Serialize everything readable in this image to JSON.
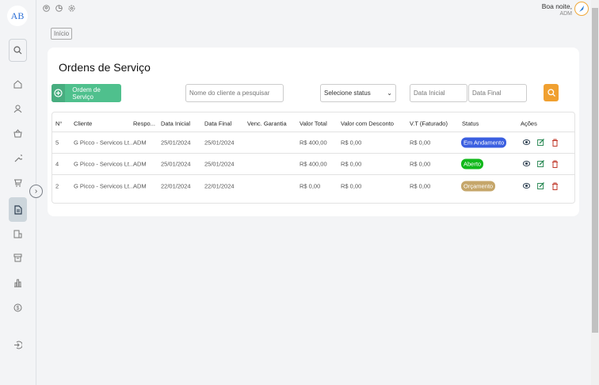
{
  "sidebar": {
    "logo": "AB",
    "items": [
      "search",
      "home",
      "user",
      "basket",
      "wrench",
      "cart",
      "documents",
      "invoice",
      "archive",
      "chart",
      "dollar",
      "logout"
    ],
    "active": "documents"
  },
  "header": {
    "greeting": "Boa noite,",
    "user": "ADM"
  },
  "breadcrumb": "Início",
  "page": {
    "title": "Ordens de Serviço"
  },
  "toolbar": {
    "new_label": "Ordem de Serviço",
    "search_placeholder": "Nome do cliente a pesquisar",
    "status_select": "Selecione status",
    "date_start_placeholder": "Data Inicial",
    "date_end_placeholder": "Data Final"
  },
  "table": {
    "headers": [
      "N°",
      "Cliente",
      "Respo...",
      "Data Inicial",
      "Data Final",
      "Venc. Garantia",
      "Valor Total",
      "Valor com Desconto",
      "V.T (Faturado)",
      "Status",
      "Ações"
    ],
    "rows": [
      {
        "n": "5",
        "cliente": "G Picco - Servicos Lt...",
        "resp": "ADM",
        "inicio": "25/01/2024",
        "fim": "25/01/2024",
        "garantia": "",
        "total": "R$ 400,00",
        "desconto": "R$ 0,00",
        "faturado": "R$ 0,00",
        "status": "Em Andamento",
        "status_color": "#3b5fe0"
      },
      {
        "n": "4",
        "cliente": "G Picco - Servicos Lt...",
        "resp": "ADM",
        "inicio": "25/01/2024",
        "fim": "25/01/2024",
        "garantia": "",
        "total": "R$ 400,00",
        "desconto": "R$ 0,00",
        "faturado": "R$ 0,00",
        "status": "Aberto",
        "status_color": "#11b81b"
      },
      {
        "n": "2",
        "cliente": "G Picco - Servicos Lt...",
        "resp": "ADM",
        "inicio": "22/01/2024",
        "fim": "22/01/2024",
        "garantia": "",
        "total": "R$ 0,00",
        "desconto": "R$ 0,00",
        "faturado": "R$ 0,00",
        "status": "Orçamento",
        "status_color": "#c5a66a"
      }
    ]
  },
  "colors": {
    "primary": "#4fc08d",
    "search": "#f0a030",
    "delete": "#c0392b",
    "edit": "#2e8b57"
  }
}
